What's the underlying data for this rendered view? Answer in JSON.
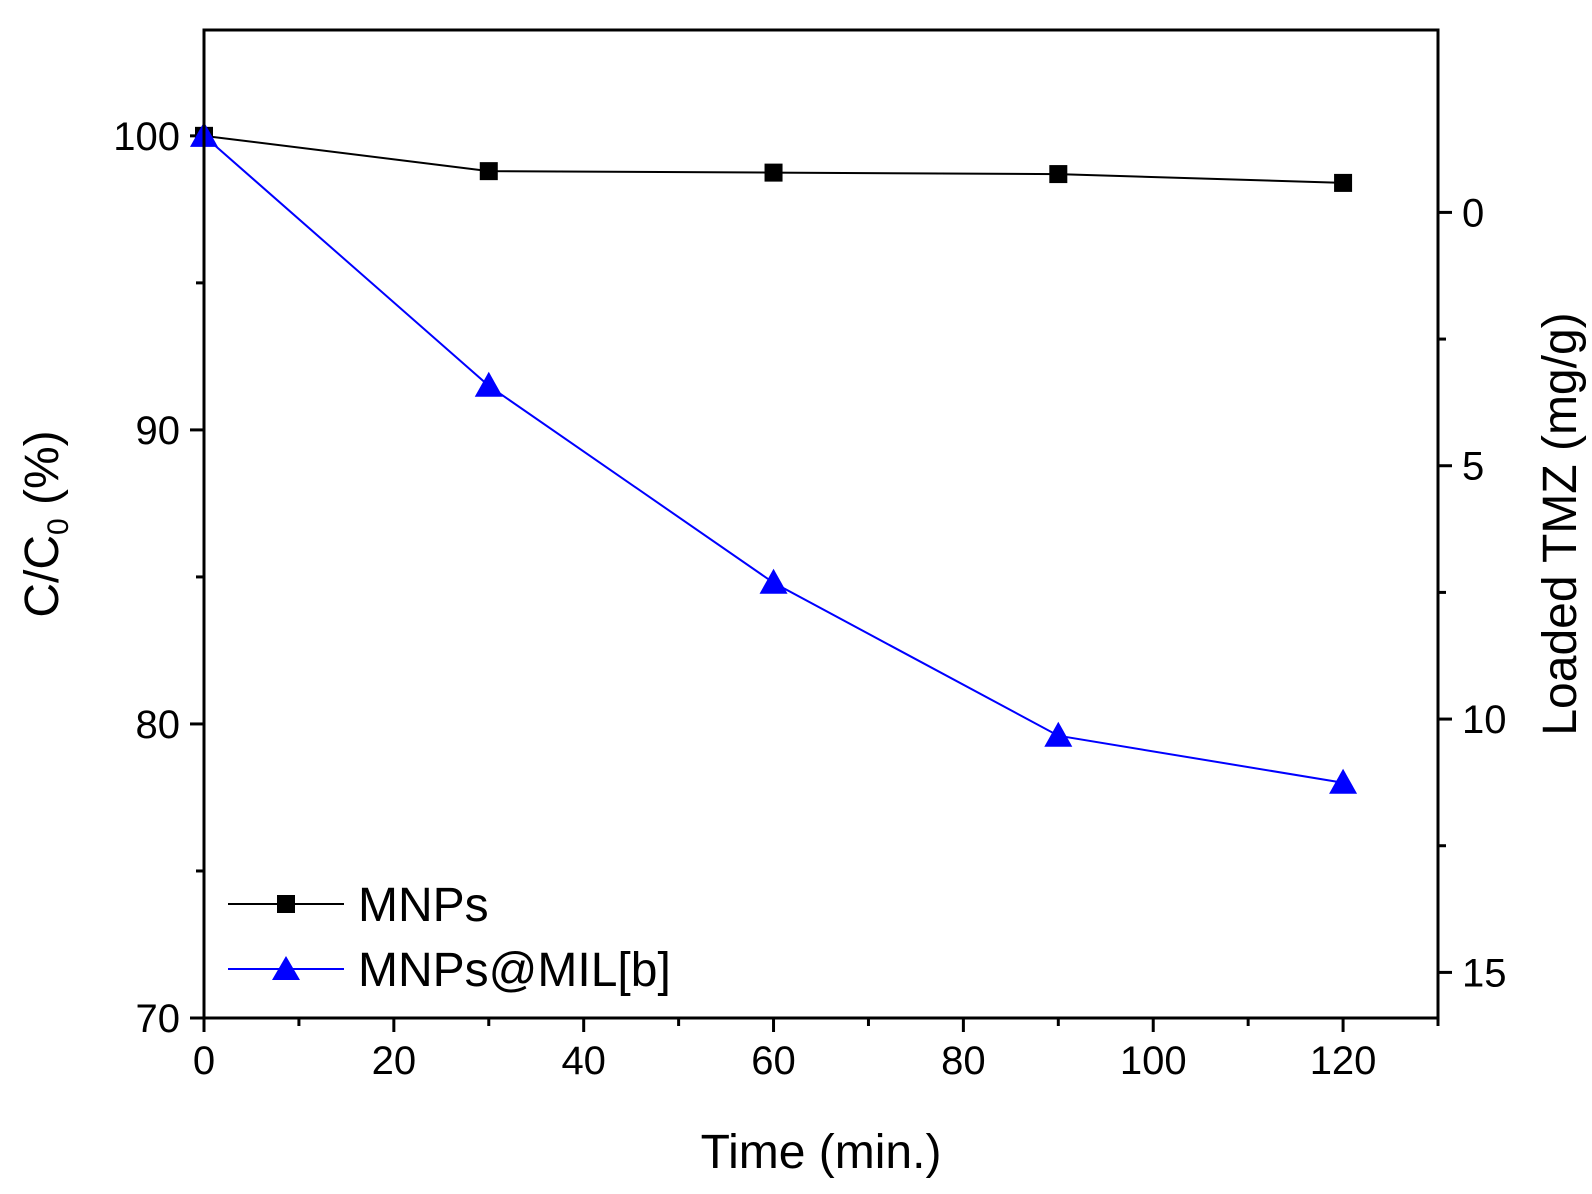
{
  "chart_data": {
    "type": "line",
    "xlabel": "Time (min.)",
    "ylabel": {
      "main": "C/C",
      "sub": "0",
      "suffix": " (%)"
    },
    "y2label": "Loaded TMZ (mg/g)",
    "xlim": [
      0,
      130
    ],
    "ylim": [
      70,
      103.6
    ],
    "y2lim": [
      -3.6,
      15.9
    ],
    "x_ticks": [
      0,
      20,
      40,
      60,
      80,
      100,
      120
    ],
    "y_ticks": [
      70,
      80,
      90,
      100
    ],
    "y2_ticks": [
      0,
      5,
      10,
      15
    ],
    "x_tick_labels": [
      "0",
      "20",
      "40",
      "60",
      "80",
      "100",
      "120"
    ],
    "y_tick_labels": [
      "70",
      "80",
      "90",
      "100"
    ],
    "y2_tick_labels": [
      "0",
      "5",
      "10",
      "15"
    ],
    "legend_position": "bottom-left",
    "series": [
      {
        "name": "MNPs",
        "color": "#000000",
        "marker": "square",
        "x": [
          0,
          30,
          60,
          90,
          120
        ],
        "y": [
          100,
          98.8,
          98.75,
          98.7,
          98.4
        ]
      },
      {
        "name": "MNPs@MIL[b]",
        "color": "#0000ff",
        "marker": "triangle",
        "x": [
          0,
          30,
          60,
          90,
          120
        ],
        "y": [
          100,
          91.5,
          84.8,
          79.6,
          78.0
        ]
      }
    ]
  }
}
